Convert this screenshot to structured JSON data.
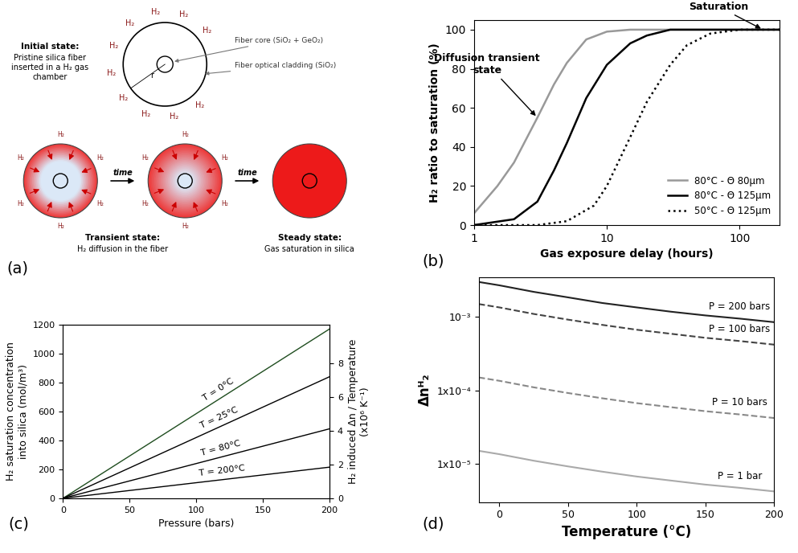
{
  "diagram": {
    "panel": "(a)",
    "initial_state": {
      "title": "Initial state:",
      "text": "Pristine silica fiber\ninserted in a H₂ gas\nchamber"
    },
    "core_label": "Fiber core (SiO₂ + GeO₂)",
    "cladding_label": "Fiber optical cladding (SiO₂)",
    "radius_label": "r",
    "gas_label": "H₂",
    "arrow_label": "time",
    "transient_state": {
      "title": "Transient state:",
      "text": "H₂ diffusion in the fiber"
    },
    "steady_state": {
      "title": "Steady state:",
      "text": "Gas saturation in silica"
    }
  },
  "chart_data": [
    {
      "type": "line",
      "panel": "(b)",
      "x_label": "Gas exposure delay (hours)",
      "y_label": "H₂ ratio to saturation (%)",
      "log": "x",
      "xlim": [
        1,
        200
      ],
      "xticks": [
        1,
        10,
        100
      ],
      "ylim": [
        0,
        105
      ],
      "yticks": [
        0,
        20,
        40,
        60,
        80,
        100
      ],
      "legend": "lower right",
      "annotations": [
        {
          "text": "Diffusion transient\nstate",
          "x": 3,
          "y": 55
        },
        {
          "text": "Saturation",
          "x": 150,
          "y": 100
        }
      ],
      "series": [
        {
          "name": "80°C - Θ 80µm",
          "color": "#999999",
          "line_style": "solid",
          "x": [
            1,
            1.5,
            2,
            3,
            4,
            5,
            7,
            10,
            15,
            200
          ],
          "values": [
            6,
            20,
            32,
            55,
            72,
            83,
            95,
            99,
            100,
            100
          ]
        },
        {
          "name": "80°C - Θ 125µm",
          "color": "#000000",
          "line_style": "solid",
          "x": [
            1,
            2,
            3,
            4,
            5,
            7,
            10,
            15,
            20,
            30,
            200
          ],
          "values": [
            0,
            3,
            12,
            28,
            42,
            65,
            82,
            93,
            97,
            100,
            100
          ]
        },
        {
          "name": "50°C - Θ 125µm",
          "color": "#000000",
          "line_style": "dotted",
          "x": [
            1,
            3,
            5,
            8,
            10,
            15,
            20,
            30,
            40,
            60,
            100,
            200
          ],
          "values": [
            0,
            0,
            2,
            10,
            20,
            45,
            63,
            82,
            92,
            98,
            100,
            100
          ]
        }
      ]
    },
    {
      "type": "line",
      "panel": "(c)",
      "x_label": "Pressure (bars)",
      "y_label": "H₂ saturation concentration\ninto silica (mol/m³)",
      "y2_label": "H₂ induced Δn / Temperature\n(x10⁶ K⁻¹)",
      "xlim": [
        0,
        200
      ],
      "xticks": [
        0,
        50,
        100,
        150,
        200
      ],
      "ylim": [
        0,
        1200
      ],
      "yticks": [
        0,
        200,
        400,
        600,
        800,
        1000,
        1200
      ],
      "y2lim": [
        0,
        10.3
      ],
      "y2ticks": [
        0,
        2,
        4,
        6,
        8
      ],
      "series": [
        {
          "name": "T = 0°C",
          "color": "#1f4d1f",
          "line_style": "solid",
          "x": [
            0,
            200
          ],
          "values": [
            0,
            1170
          ]
        },
        {
          "name": "T = 25°C",
          "color": "#000000",
          "line_style": "solid",
          "x": [
            0,
            200
          ],
          "values": [
            0,
            840
          ]
        },
        {
          "name": "T = 80°C",
          "color": "#000000",
          "line_style": "solid",
          "x": [
            0,
            200
          ],
          "values": [
            0,
            480
          ]
        },
        {
          "name": "T = 200°C",
          "color": "#000000",
          "line_style": "solid",
          "x": [
            0,
            200
          ],
          "values": [
            0,
            215
          ]
        }
      ]
    },
    {
      "type": "line",
      "panel": "(d)",
      "x_label": "Temperature (°C)",
      "y_label": "Δnᴴ₂",
      "log": "y",
      "xlim": [
        -15,
        200
      ],
      "xticks": [
        0,
        50,
        100,
        150,
        200
      ],
      "ylim": [
        3e-06,
        0.0035
      ],
      "yticks": [
        {
          "value": 1e-05,
          "label": "1x10⁻⁵"
        },
        {
          "value": 0.0001,
          "label": "1x10⁻⁴"
        },
        {
          "value": 0.001,
          "label": "10⁻³"
        }
      ],
      "series": [
        {
          "name": "P = 200 bars",
          "color": "#222222",
          "line_style": "solid",
          "x": [
            -15,
            0,
            25,
            50,
            75,
            100,
            125,
            150,
            175,
            200
          ],
          "values": [
            0.003,
            0.0027,
            0.0022,
            0.00185,
            0.00155,
            0.00135,
            0.00118,
            0.00105,
            0.00095,
            0.00085
          ]
        },
        {
          "name": "P = 100 bars",
          "color": "#444444",
          "line_style": "dashed",
          "x": [
            -15,
            0,
            25,
            50,
            75,
            100,
            125,
            150,
            175,
            200
          ],
          "values": [
            0.0015,
            0.00135,
            0.0011,
            0.00092,
            0.00078,
            0.00067,
            0.00059,
            0.00052,
            0.00047,
            0.00042
          ]
        },
        {
          "name": "P = 10 bars",
          "color": "#888888",
          "line_style": "dashed",
          "x": [
            -15,
            0,
            25,
            50,
            75,
            100,
            125,
            150,
            175,
            200
          ],
          "values": [
            0.00015,
            0.000135,
            0.00011,
            9.2e-05,
            7.8e-05,
            6.7e-05,
            5.9e-05,
            5.2e-05,
            4.7e-05,
            4.2e-05
          ]
        },
        {
          "name": "P = 1 bar",
          "color": "#aaaaaa",
          "line_style": "solid",
          "x": [
            -15,
            0,
            25,
            50,
            75,
            100,
            125,
            150,
            175,
            200
          ],
          "values": [
            1.5e-05,
            1.35e-05,
            1.1e-05,
            9.2e-06,
            7.8e-06,
            6.7e-06,
            5.9e-06,
            5.2e-06,
            4.7e-06,
            4.2e-06
          ]
        }
      ]
    }
  ]
}
